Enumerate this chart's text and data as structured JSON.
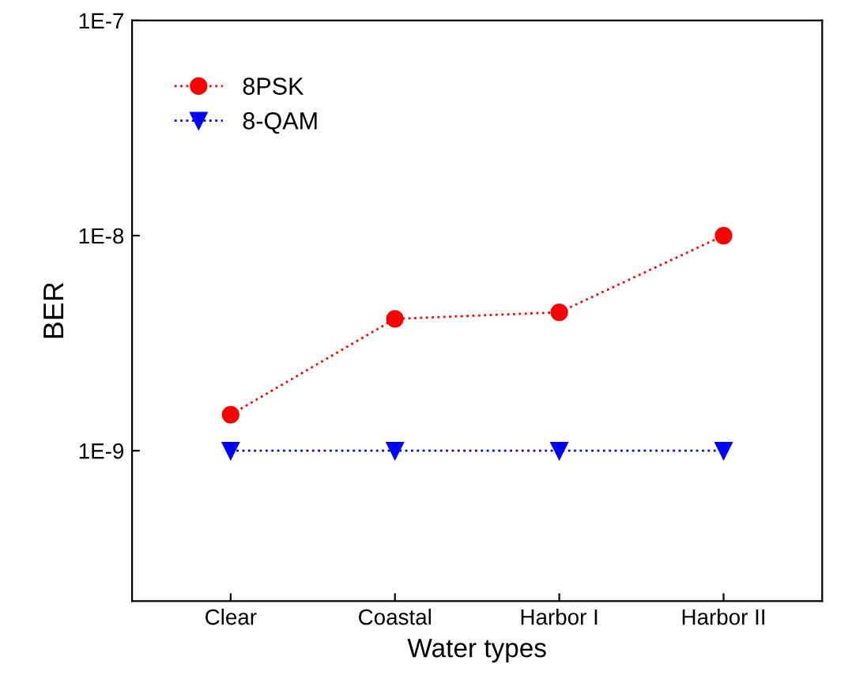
{
  "chart_data": {
    "type": "line",
    "xlabel": "Water types",
    "ylabel": "BER",
    "categories": [
      "Clear",
      "Coastal",
      "Harbor I",
      "Harbor II"
    ],
    "series": [
      {
        "name": "8PSK",
        "color": "#ff0000",
        "marker": "circle",
        "values": [
          1.47e-09,
          4.1e-09,
          4.4e-09,
          1e-08
        ]
      },
      {
        "name": "8-QAM",
        "color": "#0000ff",
        "marker": "triangle",
        "values": [
          1e-09,
          1e-09,
          1e-09,
          1e-09
        ]
      }
    ],
    "log": "y",
    "ylim": [
      2e-10,
      1e-07
    ],
    "yticks": [
      {
        "value": 1e-09,
        "label": "1E-9"
      },
      {
        "value": 1e-08,
        "label": "1E-8"
      },
      {
        "value": 1e-07,
        "label": "1E-7"
      }
    ],
    "line_style": "dotted",
    "grid": false,
    "legend": "top left"
  }
}
